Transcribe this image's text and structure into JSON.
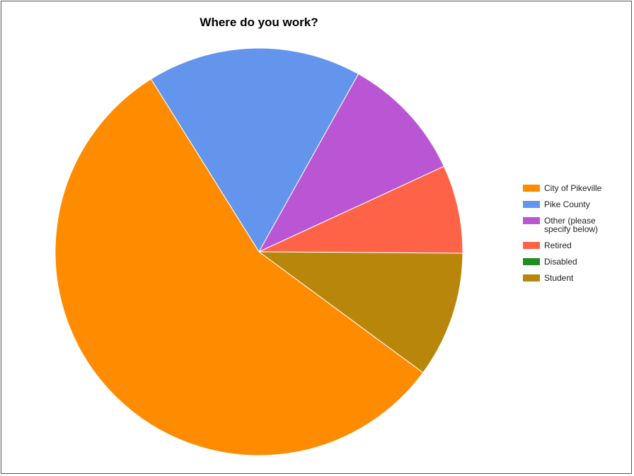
{
  "chart_data": {
    "type": "pie",
    "title": "Where do you work?",
    "categories": [
      "City of Pikeville",
      "Pike County",
      "Other (please specify below)",
      "Retired",
      "Disabled",
      "Student"
    ],
    "values": [
      56,
      17,
      10,
      7,
      0,
      10
    ],
    "colors": [
      "#ff8c00",
      "#6495ed",
      "#ba55d3",
      "#ff6347",
      "#228b22",
      "#b8860b"
    ],
    "legend_position": "right"
  }
}
